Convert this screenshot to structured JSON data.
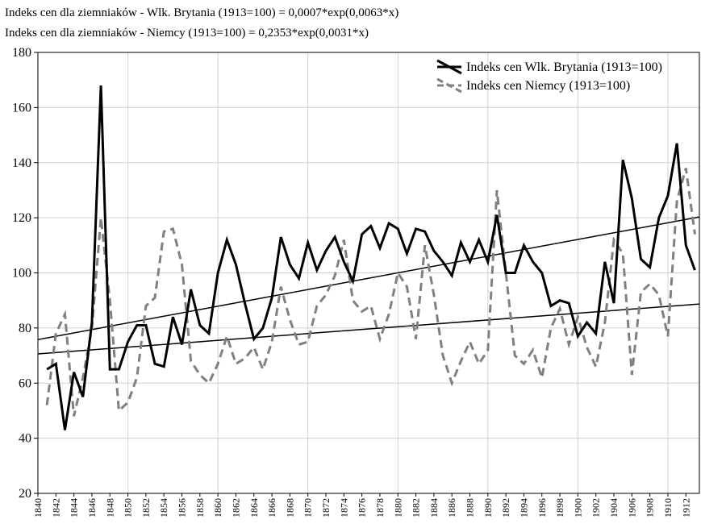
{
  "chart_data": {
    "type": "line",
    "title": "Indeks cen dla ziemniaków - Wlk. Brytania (1913=100) = 0,0007*exp(0,0063*x)",
    "subtitle": "Indeks cen dla ziemniaków - Niemcy (1913=100) = 0,2353*exp(0,0031*x)",
    "x": [
      1841,
      1842,
      1843,
      1844,
      1845,
      1846,
      1847,
      1848,
      1849,
      1850,
      1851,
      1852,
      1853,
      1854,
      1855,
      1856,
      1857,
      1858,
      1859,
      1860,
      1861,
      1862,
      1863,
      1864,
      1865,
      1866,
      1867,
      1868,
      1869,
      1870,
      1871,
      1872,
      1873,
      1874,
      1875,
      1876,
      1877,
      1878,
      1879,
      1880,
      1881,
      1882,
      1883,
      1884,
      1885,
      1886,
      1887,
      1888,
      1889,
      1890,
      1891,
      1892,
      1893,
      1894,
      1895,
      1896,
      1897,
      1898,
      1899,
      1900,
      1901,
      1902,
      1903,
      1904,
      1905,
      1906,
      1907,
      1908,
      1909,
      1910,
      1911,
      1912,
      1913
    ],
    "series": [
      {
        "name": "Indeks cen Wlk. Brytania (1913=100)",
        "color": "#000000",
        "dashed": false,
        "values": [
          65,
          67,
          43,
          64,
          55,
          82,
          168,
          65,
          65,
          75,
          81,
          81,
          67,
          66,
          84,
          74,
          94,
          81,
          78,
          100,
          112,
          103,
          89,
          76,
          80,
          91,
          113,
          103,
          98,
          111,
          101,
          108,
          113,
          104,
          97,
          114,
          117,
          109,
          118,
          116,
          107,
          116,
          115,
          108,
          104,
          99,
          111,
          104,
          112,
          104,
          121,
          100,
          100,
          110,
          104,
          100,
          88,
          90,
          89,
          77,
          82,
          78,
          104,
          89,
          141,
          127,
          105,
          102,
          120,
          128,
          147,
          110,
          101
        ]
      },
      {
        "name": "Indeks cen Niemcy (1913=100)",
        "color": "#808080",
        "dashed": true,
        "values": [
          52,
          78,
          85,
          48,
          62,
          80,
          120,
          90,
          50,
          53,
          62,
          88,
          91,
          115,
          116,
          103,
          68,
          63,
          60,
          67,
          77,
          67,
          69,
          73,
          65,
          75,
          95,
          83,
          74,
          75,
          88,
          92,
          99,
          112,
          90,
          86,
          88,
          76,
          85,
          100,
          95,
          76,
          110,
          92,
          70,
          60,
          68,
          75,
          67,
          72,
          130,
          100,
          70,
          67,
          72,
          62,
          80,
          87,
          74,
          84,
          73,
          66,
          82,
          112,
          107,
          63,
          93,
          96,
          92,
          77,
          126,
          138,
          114
        ]
      }
    ],
    "trend_lines": [
      {
        "x": [
          1840,
          1913.5
        ],
        "values": [
          75.8,
          120.3
        ],
        "color": "#000000"
      },
      {
        "x": [
          1840,
          1913.5
        ],
        "values": [
          70.6,
          88.7
        ],
        "color": "#000000"
      }
    ],
    "xlim": [
      1840,
      1913.5
    ],
    "xticks": [
      1840,
      1842,
      1844,
      1846,
      1848,
      1850,
      1852,
      1854,
      1856,
      1858,
      1860,
      1862,
      1864,
      1866,
      1868,
      1870,
      1872,
      1874,
      1876,
      1878,
      1880,
      1882,
      1884,
      1886,
      1888,
      1890,
      1892,
      1894,
      1896,
      1898,
      1900,
      1902,
      1904,
      1906,
      1908,
      1910,
      1912
    ],
    "ylim": [
      20,
      180
    ],
    "yticks": [
      20,
      40,
      60,
      80,
      100,
      120,
      140,
      160,
      180
    ],
    "grid": true,
    "legend": "top-right"
  }
}
